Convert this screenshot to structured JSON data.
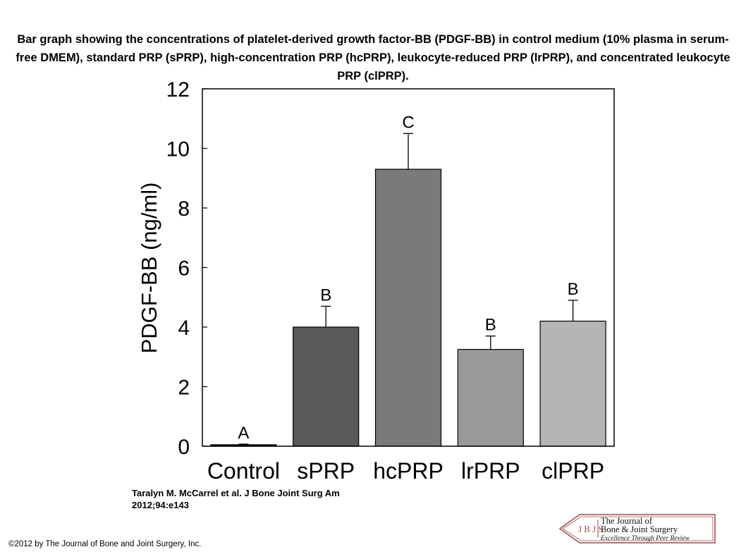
{
  "figure": {
    "caption": "Bar graph showing the concentrations of platelet-derived growth factor-BB (PDGF-BB) in control medium (10% plasma in serum-free DMEM), standard PRP (sPRP), high-concentration PRP (hcPRP), leukocyte-reduced PRP (lrPRP), and concentrated leukocyte PRP (clPRP).",
    "citation_line1": "Taralyn M. McCarrel et al. J Bone Joint Surg Am",
    "citation_line2": "2012;94:e143",
    "copyright": "©2012 by The Journal of Bone and Joint Surgery, Inc."
  },
  "logo": {
    "monogram": "J B J S",
    "line1": "The Journal of",
    "line2": "Bone & Joint Surgery",
    "tagline": "Excellence Through Peer Review"
  },
  "chart_data": {
    "type": "bar",
    "title": "",
    "xlabel": "",
    "ylabel": "PDGF-BB (ng/ml)",
    "ylim": [
      0,
      12
    ],
    "yticks": [
      0,
      2,
      4,
      6,
      8,
      10,
      12
    ],
    "categories": [
      "Control",
      "sPRP",
      "hcPRP",
      "lrPRP",
      "clPRP"
    ],
    "values": [
      0.05,
      4.0,
      9.3,
      3.25,
      4.2
    ],
    "errors": [
      0.02,
      0.7,
      1.2,
      0.45,
      0.7
    ],
    "significance_letters": [
      "A",
      "B",
      "C",
      "B",
      "B"
    ],
    "colors": [
      "#1e1e1e",
      "#595959",
      "#7a7a7a",
      "#999999",
      "#b5b5b5"
    ],
    "grid": false,
    "legend": "none"
  }
}
